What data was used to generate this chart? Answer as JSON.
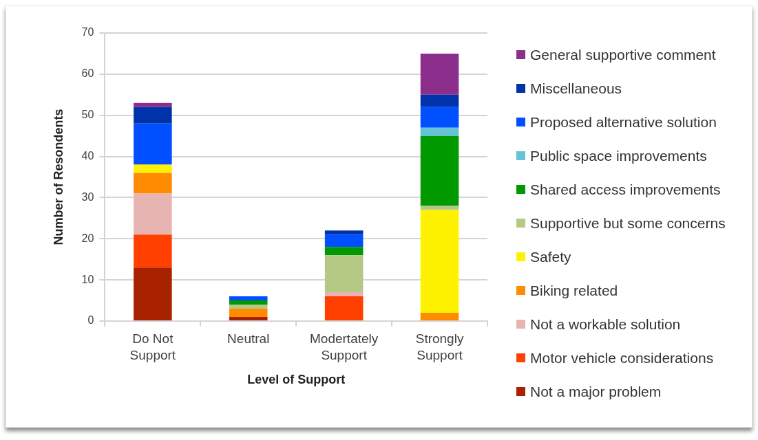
{
  "chart_data": {
    "type": "bar",
    "stacked": true,
    "xlabel": "Level of Support",
    "ylabel": "Number of Resondents",
    "categories": [
      "Do Not Support",
      "Neutral",
      "Modertately Support",
      "Strongly Support"
    ],
    "ylim": [
      0,
      70
    ],
    "yticks": [
      0,
      10,
      20,
      30,
      40,
      50,
      60,
      70
    ],
    "grid": "y",
    "legend": "right",
    "series": [
      {
        "name": "Not a major problem",
        "color": "#a82200",
        "values": [
          13,
          1,
          0,
          0
        ]
      },
      {
        "name": "Motor vehicle considerations",
        "color": "#ff4000",
        "values": [
          8,
          0,
          6,
          0
        ]
      },
      {
        "name": "Not a workable solution",
        "color": "#e8b4b2",
        "values": [
          10,
          0,
          1,
          0
        ]
      },
      {
        "name": "Biking related",
        "color": "#ff8c00",
        "values": [
          5,
          2,
          0,
          2
        ]
      },
      {
        "name": "Safety",
        "color": "#fff200",
        "values": [
          2,
          0,
          0,
          25
        ]
      },
      {
        "name": "Supportive but some concerns",
        "color": "#b5c985",
        "values": [
          0,
          1,
          9,
          1
        ]
      },
      {
        "name": "Shared access improvements",
        "color": "#009900",
        "values": [
          0,
          1,
          2,
          17
        ]
      },
      {
        "name": "Public space improvements",
        "color": "#66c2d6",
        "values": [
          0,
          0,
          0,
          2
        ]
      },
      {
        "name": "Proposed alternative solution",
        "color": "#0050ff",
        "values": [
          10,
          1,
          3,
          5
        ]
      },
      {
        "name": "Miscellaneous",
        "color": "#0033aa",
        "values": [
          4,
          0,
          1,
          3
        ]
      },
      {
        "name": "General supportive comment",
        "color": "#8c2f8c",
        "values": [
          1,
          0,
          0,
          10
        ]
      }
    ]
  }
}
